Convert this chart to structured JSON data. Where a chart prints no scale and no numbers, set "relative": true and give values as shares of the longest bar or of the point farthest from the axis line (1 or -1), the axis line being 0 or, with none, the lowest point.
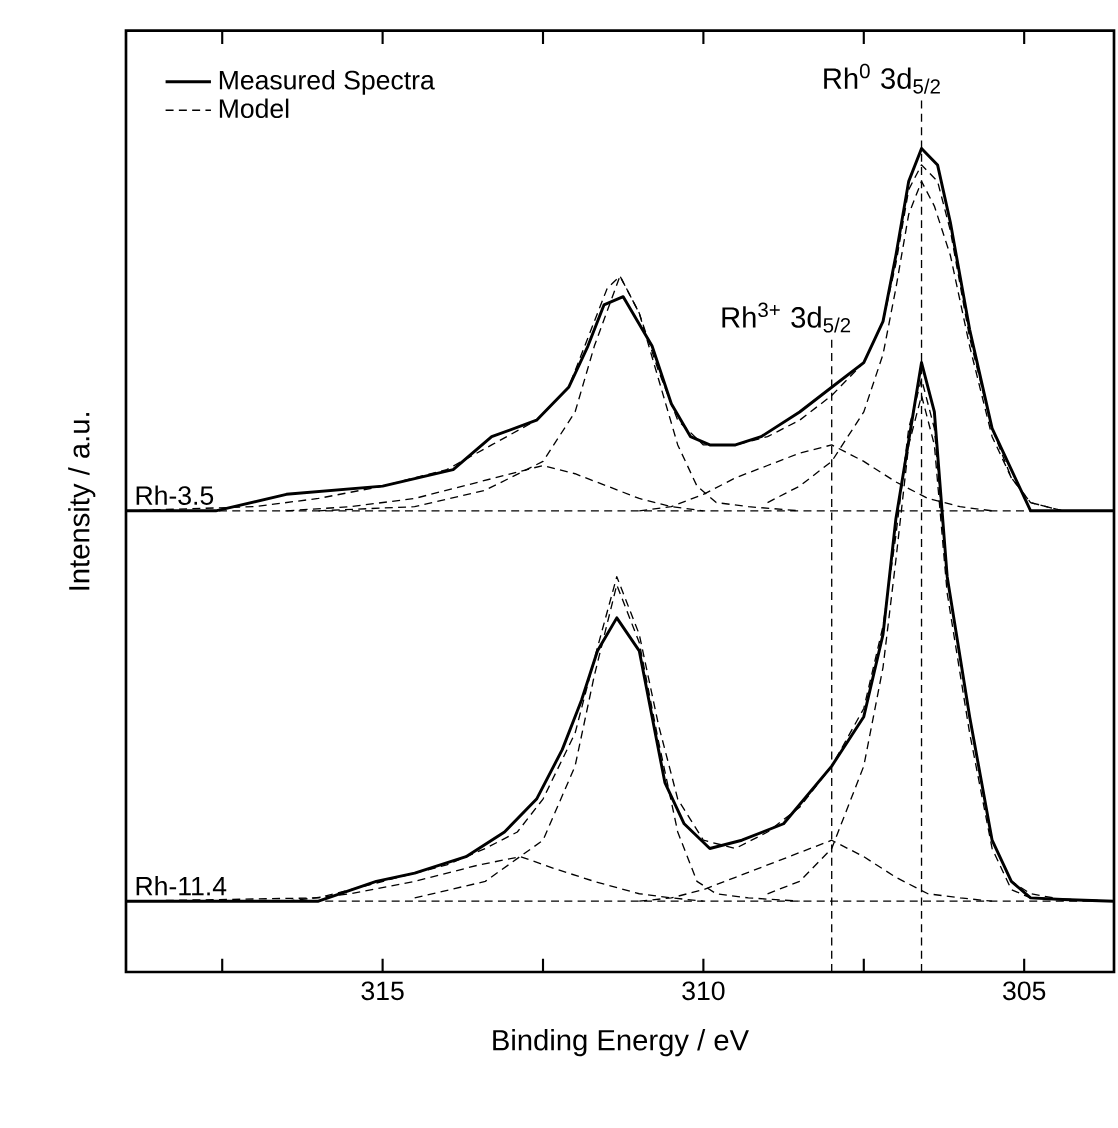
{
  "chart_data": {
    "type": "line",
    "relative": true,
    "xlabel": "Binding Energy / eV",
    "ylabel": "Intensity / a.u.",
    "xlim": [
      319,
      303.6
    ],
    "xticks": [
      {
        "value": 317.5,
        "label": null
      },
      315,
      {
        "value": 312.5,
        "label": null
      },
      310,
      {
        "value": 307.5,
        "label": null
      },
      305
    ],
    "legend": "top left",
    "series": [
      {
        "name": "Measured Spectra",
        "color": "#000000",
        "line_style": "solid",
        "x": [
          319,
          317.6,
          316.5,
          315.0,
          313.9,
          313.3,
          312.6,
          312.1,
          311.8,
          311.55,
          311.25,
          310.8,
          310.5,
          310.2,
          309.9,
          309.5,
          309.1,
          308.5,
          308.0,
          307.5,
          307.2,
          307.0,
          306.8,
          306.6,
          306.35,
          306.15,
          305.85,
          305.5,
          305.2,
          304.9,
          304.4,
          303.6
        ],
        "values": [
          0.56,
          0.56,
          0.58,
          0.59,
          0.61,
          0.65,
          0.67,
          0.71,
          0.76,
          0.81,
          0.82,
          0.76,
          0.69,
          0.65,
          0.64,
          0.64,
          0.65,
          0.68,
          0.71,
          0.74,
          0.79,
          0.87,
          0.96,
          1.0,
          0.98,
          0.91,
          0.78,
          0.66,
          0.61,
          0.56,
          0.56,
          0.56
        ]
      },
      {
        "name": "Model",
        "color": "#000000",
        "line_style": "dashed",
        "x": [
          319,
          317,
          316,
          315,
          314,
          313.3,
          312.6,
          312.1,
          311.8,
          311.5,
          311.3,
          311.0,
          310.7,
          310.4,
          310.0,
          309.5,
          309.0,
          308.5,
          308.0,
          307.5,
          307.2,
          307.0,
          306.8,
          306.6,
          306.35,
          306.15,
          305.85,
          305.5,
          305.2,
          304.9,
          304.4,
          303.6
        ],
        "values": [
          0.56,
          0.565,
          0.575,
          0.59,
          0.61,
          0.64,
          0.67,
          0.71,
          0.77,
          0.83,
          0.845,
          0.8,
          0.73,
          0.67,
          0.64,
          0.64,
          0.65,
          0.67,
          0.7,
          0.74,
          0.79,
          0.86,
          0.95,
          0.98,
          0.96,
          0.9,
          0.77,
          0.66,
          0.6,
          0.57,
          0.56,
          0.56
        ]
      },
      {
        "color": "#000000",
        "line_style": "dashed",
        "x": [
          309,
          308.5,
          308,
          307.5,
          307.2,
          307,
          306.8,
          306.6,
          306.4,
          306.15,
          305.85,
          305.5,
          305.2,
          304.9,
          304.4,
          303.6
        ],
        "values": [
          0.57,
          0.59,
          0.62,
          0.68,
          0.75,
          0.83,
          0.92,
          0.96,
          0.93,
          0.87,
          0.76,
          0.65,
          0.6,
          0.57,
          0.56,
          0.56
        ]
      },
      {
        "color": "#000000",
        "line_style": "dashed",
        "x": [
          316,
          314.5,
          313.4,
          312.5,
          312.0,
          311.7,
          311.3,
          311.0,
          310.7,
          310.4,
          310.1,
          309.8,
          309.3,
          308.5
        ],
        "values": [
          0.56,
          0.565,
          0.585,
          0.62,
          0.68,
          0.76,
          0.845,
          0.8,
          0.72,
          0.64,
          0.59,
          0.57,
          0.565,
          0.56
        ]
      },
      {
        "color": "#000000",
        "line_style": "dashed",
        "x": [
          311,
          310.5,
          310,
          309.5,
          309,
          308.5,
          308.0,
          307.5,
          307,
          306.5,
          306,
          305.5
        ],
        "values": [
          0.56,
          0.565,
          0.58,
          0.6,
          0.615,
          0.63,
          0.64,
          0.62,
          0.595,
          0.575,
          0.565,
          0.56
        ]
      },
      {
        "color": "#000000",
        "line_style": "dashed",
        "x": [
          316.5,
          315.5,
          314.5,
          313.5,
          312.5,
          312.0,
          311.5,
          311,
          310.5,
          310
        ],
        "values": [
          0.56,
          0.565,
          0.575,
          0.595,
          0.615,
          0.605,
          0.59,
          0.575,
          0.565,
          0.56
        ]
      },
      {
        "color": "#000000",
        "line_style": "dashed",
        "x": [
          319,
          303.6
        ],
        "values": [
          0.56,
          0.56
        ]
      },
      {
        "color": "#000000",
        "line_style": "solid",
        "x": [
          319,
          316.0,
          315.1,
          314.5,
          313.7,
          313.1,
          312.6,
          312.2,
          311.9,
          311.65,
          311.35,
          311.0,
          310.8,
          310.6,
          310.3,
          309.9,
          309.4,
          308.75,
          308.0,
          307.5,
          307.2,
          307.0,
          306.6,
          306.4,
          306.2,
          305.85,
          305.5,
          305.2,
          304.9,
          304.4,
          303.6
        ],
        "values": [
          0.086,
          0.086,
          0.11,
          0.12,
          0.14,
          0.17,
          0.21,
          0.27,
          0.33,
          0.39,
          0.43,
          0.39,
          0.31,
          0.23,
          0.18,
          0.15,
          0.16,
          0.18,
          0.25,
          0.31,
          0.41,
          0.55,
          0.74,
          0.68,
          0.48,
          0.31,
          0.16,
          0.11,
          0.09,
          0.088,
          0.086
        ]
      },
      {
        "color": "#000000",
        "line_style": "dashed",
        "x": [
          319,
          316,
          315,
          314,
          313.4,
          312.9,
          312.5,
          312.0,
          311.7,
          311.35,
          311.0,
          310.7,
          310.4,
          310.0,
          309.5,
          309.0,
          308.5,
          308.0,
          307.5,
          307.2,
          307.0,
          306.8,
          306.6,
          306.4,
          306.2,
          305.85,
          305.5,
          305.2,
          304.9,
          304.4,
          303.6
        ],
        "values": [
          0.086,
          0.09,
          0.11,
          0.13,
          0.15,
          0.17,
          0.21,
          0.29,
          0.38,
          0.48,
          0.41,
          0.3,
          0.21,
          0.16,
          0.15,
          0.17,
          0.2,
          0.25,
          0.32,
          0.42,
          0.53,
          0.66,
          0.72,
          0.66,
          0.48,
          0.31,
          0.16,
          0.11,
          0.095,
          0.088,
          0.086
        ]
      },
      {
        "color": "#000000",
        "line_style": "dashed",
        "x": [
          309,
          308.5,
          308,
          307.5,
          307.2,
          307,
          306.8,
          306.6,
          306.4,
          306.2,
          305.85,
          305.5,
          305.2,
          304.9,
          303.6
        ],
        "values": [
          0.095,
          0.11,
          0.15,
          0.25,
          0.37,
          0.5,
          0.64,
          0.7,
          0.64,
          0.46,
          0.29,
          0.15,
          0.1,
          0.09,
          0.086
        ]
      },
      {
        "color": "#000000",
        "line_style": "dashed",
        "x": [
          314.5,
          313.4,
          312.5,
          312.0,
          311.7,
          311.35,
          311.0,
          310.7,
          310.4,
          310.1,
          309.8,
          309.3,
          308.5
        ],
        "values": [
          0.09,
          0.11,
          0.16,
          0.25,
          0.36,
          0.47,
          0.4,
          0.28,
          0.17,
          0.11,
          0.095,
          0.09,
          0.086
        ]
      },
      {
        "color": "#000000",
        "line_style": "dashed",
        "x": [
          311,
          310.5,
          310,
          309.5,
          309,
          308.5,
          308,
          307.5,
          307,
          306.5,
          306,
          305.5
        ],
        "values": [
          0.086,
          0.09,
          0.1,
          0.115,
          0.13,
          0.145,
          0.16,
          0.14,
          0.115,
          0.095,
          0.09,
          0.086
        ]
      },
      {
        "color": "#000000",
        "line_style": "dashed",
        "x": [
          316.5,
          315.5,
          314.5,
          313.5,
          312.85,
          312.3,
          311.7,
          311,
          310.5,
          310
        ],
        "values": [
          0.086,
          0.095,
          0.11,
          0.13,
          0.14,
          0.125,
          0.11,
          0.095,
          0.09,
          0.086
        ]
      },
      {
        "color": "#000000",
        "line_style": "dashed",
        "x": [
          319,
          303.6
        ],
        "values": [
          0.086,
          0.086
        ]
      }
    ],
    "ref_lines": [
      {
        "axis": "x",
        "value": 308.0,
        "label": "Rh$^{3+}$ 3d$_{5/2}$",
        "line_style": "dashed"
      },
      {
        "axis": "x",
        "value": 306.6,
        "label": "Rh$^{0}$ 3d$_{5/2}$",
        "line_style": "dashed"
      }
    ],
    "annotations": [
      {
        "text": "Rh-3.5",
        "x": 319,
        "y": 0.56
      },
      {
        "text": "Rh-11.4",
        "x": 319,
        "y": 0.086
      }
    ]
  }
}
